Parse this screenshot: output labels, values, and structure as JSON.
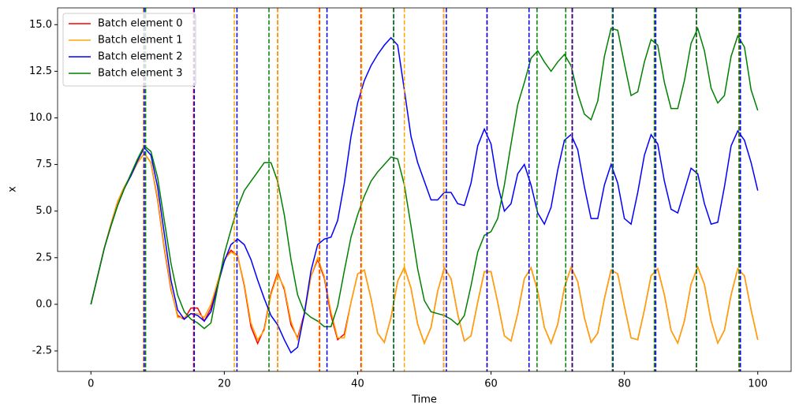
{
  "chart_data": {
    "type": "line",
    "x_label": "Time",
    "y_label": "x",
    "x": [
      0,
      1,
      2,
      3,
      4,
      5,
      6,
      7,
      8,
      9,
      10,
      11,
      12,
      13,
      14,
      15,
      16,
      17,
      18,
      19,
      20,
      21,
      22,
      23,
      24,
      25,
      26,
      27,
      28,
      29,
      30,
      31,
      32,
      33,
      34,
      35,
      36,
      37,
      38,
      39,
      40,
      41,
      42,
      43,
      44,
      45,
      46,
      47,
      48,
      49,
      50,
      51,
      52,
      53,
      54,
      55,
      56,
      57,
      58,
      59,
      60,
      61,
      62,
      63,
      64,
      65,
      66,
      67,
      68,
      69,
      70,
      71,
      72,
      73,
      74,
      75,
      76,
      77,
      78,
      79,
      80,
      81,
      82,
      83,
      84,
      85,
      86,
      87,
      88,
      89,
      90,
      91,
      92,
      93,
      94,
      95,
      96,
      97,
      98,
      99,
      100
    ],
    "series": [
      {
        "name": "Batch element 0",
        "color": "#ff0000",
        "values": [
          0,
          1.5,
          3.0,
          4.3,
          5.5,
          6.3,
          6.9,
          7.6,
          8.1,
          7.6,
          5.6,
          3.0,
          0.8,
          -0.6,
          -0.8,
          -0.2,
          -0.2,
          -0.9,
          -0.2,
          1.2,
          2.4,
          2.9,
          2.6,
          1.0,
          -1.2,
          -2.1,
          -1.3,
          0.6,
          1.7,
          0.8,
          -1.1,
          -1.8,
          -0.5,
          1.5,
          2.4,
          1.4,
          -0.6,
          -1.9,
          -1.6,
          0.1,
          1.63,
          1.84,
          0.31,
          -1.55,
          -2.04,
          -0.71,
          1.24,
          1.99,
          0.87,
          -1.07,
          -2.09,
          -1.24,
          0.71,
          1.96,
          1.38,
          -0.52,
          -1.97,
          -1.69,
          0.11,
          1.75,
          1.75,
          0.11,
          -1.69,
          -1.97,
          -0.5,
          1.38,
          1.96,
          0.71,
          -1.24,
          -2.09,
          -1.07,
          0.89,
          1.99,
          1.22,
          -0.71,
          -2.04,
          -1.55,
          0.3,
          1.84,
          1.63,
          -0.11,
          -1.8,
          -1.9,
          -0.3,
          1.53,
          1.91,
          0.5,
          -1.4,
          -2.08,
          -0.89,
          1.08,
          2.0,
          1.06,
          -0.89,
          -2.08,
          -1.4,
          0.5,
          1.91,
          1.53,
          -0.3,
          -1.9
        ],
        "events": [
          7.9,
          15.4,
          28.0,
          34.3,
          40.5,
          45.4,
          52.9,
          59.4,
          65.7,
          72.1,
          78.2,
          84.5,
          90.8,
          97.2
        ]
      },
      {
        "name": "Batch element 1",
        "color": "#ffa500",
        "values": [
          0,
          1.5,
          3.0,
          4.3,
          5.5,
          6.3,
          6.9,
          7.6,
          8.1,
          7.6,
          5.7,
          3.1,
          0.9,
          -0.7,
          -0.7,
          -0.5,
          -0.5,
          -0.7,
          0.0,
          1.2,
          2.4,
          2.8,
          2.6,
          1.1,
          -1.0,
          -1.9,
          -1.4,
          0.5,
          1.6,
          0.9,
          -0.9,
          -1.9,
          -0.6,
          1.5,
          2.5,
          1.5,
          -0.4,
          -1.8,
          -1.8,
          0.1,
          1.63,
          1.84,
          0.31,
          -1.55,
          -2.04,
          -0.71,
          1.24,
          1.99,
          0.87,
          -1.07,
          -2.09,
          -1.24,
          0.71,
          1.96,
          1.38,
          -0.52,
          -1.97,
          -1.69,
          0.11,
          1.75,
          1.75,
          0.11,
          -1.69,
          -1.97,
          -0.5,
          1.38,
          1.96,
          0.71,
          -1.24,
          -2.09,
          -1.07,
          0.89,
          1.99,
          1.22,
          -0.71,
          -2.04,
          -1.55,
          0.3,
          1.84,
          1.63,
          -0.11,
          -1.8,
          -1.9,
          -0.3,
          1.53,
          1.91,
          0.5,
          -1.4,
          -2.08,
          -0.89,
          1.08,
          2.0,
          1.06,
          -0.89,
          -2.08,
          -1.4,
          0.5,
          1.91,
          1.53,
          -0.3,
          -1.9
        ],
        "events": [
          7.9,
          21.5,
          28.0,
          34.2,
          40.6,
          47.0,
          52.9,
          59.4,
          65.7,
          72.1,
          78.2,
          84.5,
          90.8,
          97.2
        ]
      },
      {
        "name": "Batch element 2",
        "color": "#0000ff",
        "values": [
          0,
          1.5,
          3.0,
          4.2,
          5.3,
          6.2,
          6.9,
          7.7,
          8.4,
          8.0,
          6.3,
          3.8,
          1.3,
          -0.3,
          -0.8,
          -0.5,
          -0.6,
          -0.9,
          -0.4,
          1.0,
          2.3,
          3.2,
          3.5,
          3.2,
          2.4,
          1.3,
          0.3,
          -0.6,
          -1.1,
          -1.9,
          -2.6,
          -2.3,
          -0.5,
          1.8,
          3.2,
          3.5,
          3.6,
          4.5,
          6.5,
          9.0,
          10.8,
          12.0,
          12.8,
          13.4,
          13.9,
          14.3,
          13.9,
          11.5,
          9.0,
          7.6,
          6.6,
          5.6,
          5.6,
          6.0,
          6.0,
          5.4,
          5.3,
          6.5,
          8.5,
          9.4,
          8.6,
          6.4,
          5.0,
          5.4,
          7.0,
          7.5,
          6.4,
          4.9,
          4.3,
          5.2,
          7.2,
          8.8,
          9.1,
          8.3,
          6.3,
          4.6,
          4.6,
          6.4,
          7.5,
          6.5,
          4.6,
          4.3,
          6.0,
          8.0,
          9.1,
          8.6,
          6.6,
          5.1,
          4.9,
          6.1,
          7.3,
          7.0,
          5.4,
          4.3,
          4.4,
          6.3,
          8.5,
          9.3,
          8.8,
          7.6,
          6.1
        ],
        "events": [
          8.0,
          15.5,
          21.9,
          35.4,
          45.4,
          53.3,
          59.4,
          65.7,
          72.2,
          78.3,
          84.7,
          90.8,
          97.4
        ]
      },
      {
        "name": "Batch element 3",
        "color": "#008000",
        "values": [
          0,
          1.5,
          3.0,
          4.2,
          5.3,
          6.2,
          7.0,
          7.8,
          8.5,
          8.2,
          6.8,
          4.5,
          2.2,
          0.5,
          -0.4,
          -0.8,
          -1.0,
          -1.3,
          -1.0,
          0.9,
          2.7,
          4.0,
          5.2,
          6.1,
          6.6,
          7.1,
          7.6,
          7.6,
          6.6,
          4.8,
          2.4,
          0.5,
          -0.4,
          -0.7,
          -0.9,
          -1.2,
          -1.2,
          -0.1,
          1.8,
          3.6,
          4.8,
          5.8,
          6.6,
          7.1,
          7.5,
          7.9,
          7.8,
          6.4,
          4.2,
          1.9,
          0.2,
          -0.4,
          -0.5,
          -0.6,
          -0.8,
          -1.1,
          -0.6,
          1.0,
          2.8,
          3.7,
          3.9,
          4.6,
          6.4,
          8.6,
          10.7,
          11.9,
          13.2,
          13.6,
          13.0,
          12.5,
          13.0,
          13.4,
          12.8,
          11.3,
          10.2,
          9.9,
          10.9,
          13.3,
          14.8,
          14.7,
          12.9,
          11.2,
          11.4,
          13.0,
          14.2,
          13.9,
          11.9,
          10.5,
          10.5,
          12.0,
          14.0,
          14.8,
          13.6,
          11.6,
          10.8,
          11.2,
          13.3,
          14.4,
          13.8,
          11.5,
          10.4
        ],
        "events": [
          8.2,
          26.7,
          45.4,
          66.9,
          71.2,
          78.2,
          84.5,
          90.8,
          97.2
        ]
      }
    ],
    "xlim": [
      -5,
      105
    ],
    "ylim": [
      -3.6,
      15.9
    ],
    "xticks": [
      0,
      20,
      40,
      60,
      80,
      100
    ],
    "yticks": [
      -2.5,
      {
        "value": 0,
        "label": "0.0"
      },
      2.5,
      {
        "value": 5,
        "label": "5.0"
      },
      7.5,
      {
        "value": 10,
        "label": "10.0"
      },
      12.5,
      {
        "value": 15,
        "label": "15.0"
      }
    ],
    "grid": false,
    "legend": "upper left"
  }
}
